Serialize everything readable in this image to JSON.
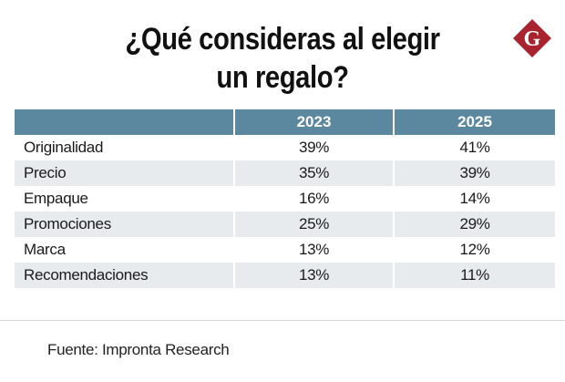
{
  "title": {
    "line1": "¿Qué consideras al elegir",
    "line2": "un regalo?"
  },
  "logo": {
    "icon": "g-diamond-logo-icon",
    "letter": "G",
    "color": "#a8232d"
  },
  "colors": {
    "header_bg": "#5b879f",
    "shaded_row_bg": "#e8ebee"
  },
  "source": "Fuente: Impronta Research",
  "chart_data": {
    "type": "table",
    "title": "¿Qué consideras al elegir un regalo?",
    "columns": [
      "",
      "2023",
      "2025"
    ],
    "rows": [
      {
        "label": "Originalidad",
        "values": [
          "39%",
          "41%"
        ]
      },
      {
        "label": "Precio",
        "values": [
          "35%",
          "39%"
        ]
      },
      {
        "label": "Empaque",
        "values": [
          "16%",
          "14%"
        ]
      },
      {
        "label": "Promociones",
        "values": [
          "25%",
          "29%"
        ]
      },
      {
        "label": "Marca",
        "values": [
          "13%",
          "12%"
        ]
      },
      {
        "label": "Recomendaciones",
        "values": [
          "13%",
          "11%"
        ]
      }
    ],
    "series": [
      {
        "name": "2023",
        "values": [
          39,
          35,
          16,
          25,
          13,
          13
        ]
      },
      {
        "name": "2025",
        "values": [
          41,
          39,
          14,
          29,
          12,
          11
        ]
      }
    ],
    "categories": [
      "Originalidad",
      "Precio",
      "Empaque",
      "Promociones",
      "Marca",
      "Recomendaciones"
    ],
    "unit": "%",
    "source": "Fuente: Impronta Research"
  }
}
